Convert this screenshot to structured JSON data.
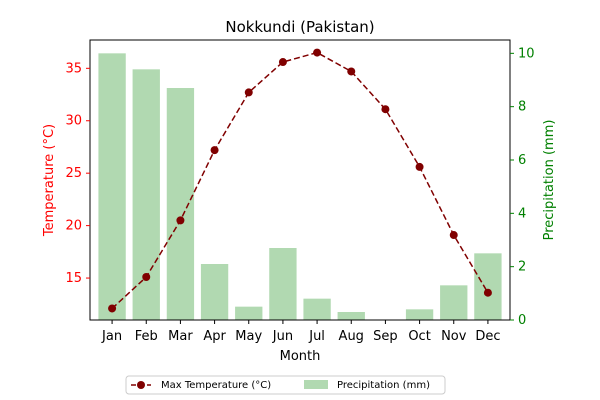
{
  "chart_data": {
    "type": "bar+line",
    "title": "Nokkundi (Pakistan)",
    "xlabel": "Month",
    "ylabel_left": "Temperature (°C)",
    "ylabel_right": "Precipitation (mm)",
    "categories": [
      "Jan",
      "Feb",
      "Mar",
      "Apr",
      "May",
      "Jun",
      "Jul",
      "Aug",
      "Sep",
      "Oct",
      "Nov",
      "Dec"
    ],
    "left_axis": {
      "ylim": [
        11.0,
        37.7
      ],
      "ticks": [
        15,
        20,
        25,
        30,
        35
      ],
      "color": "#ff0000"
    },
    "right_axis": {
      "ylim": [
        0,
        10.5
      ],
      "ticks": [
        0,
        2,
        4,
        6,
        8,
        10
      ],
      "color": "#008000"
    },
    "series": [
      {
        "name": "Max Temperature (°C)",
        "type": "line",
        "axis": "left",
        "color": "#800000",
        "linestyle": "dashed",
        "marker": "circle",
        "values": [
          12.1,
          15.1,
          20.5,
          27.2,
          32.7,
          35.6,
          36.5,
          34.7,
          31.1,
          25.6,
          19.1,
          13.6
        ]
      },
      {
        "name": "Precipitation (mm)",
        "type": "bar",
        "axis": "right",
        "color": "#b1d9b1",
        "values": [
          10.0,
          9.4,
          8.7,
          2.1,
          0.5,
          2.7,
          0.8,
          0.3,
          0.0,
          0.4,
          1.3,
          2.5
        ]
      }
    ],
    "legend": {
      "placement": "bottom-center",
      "entries": [
        "Max Temperature (°C)",
        "Precipitation (mm)"
      ]
    },
    "grid": false
  }
}
